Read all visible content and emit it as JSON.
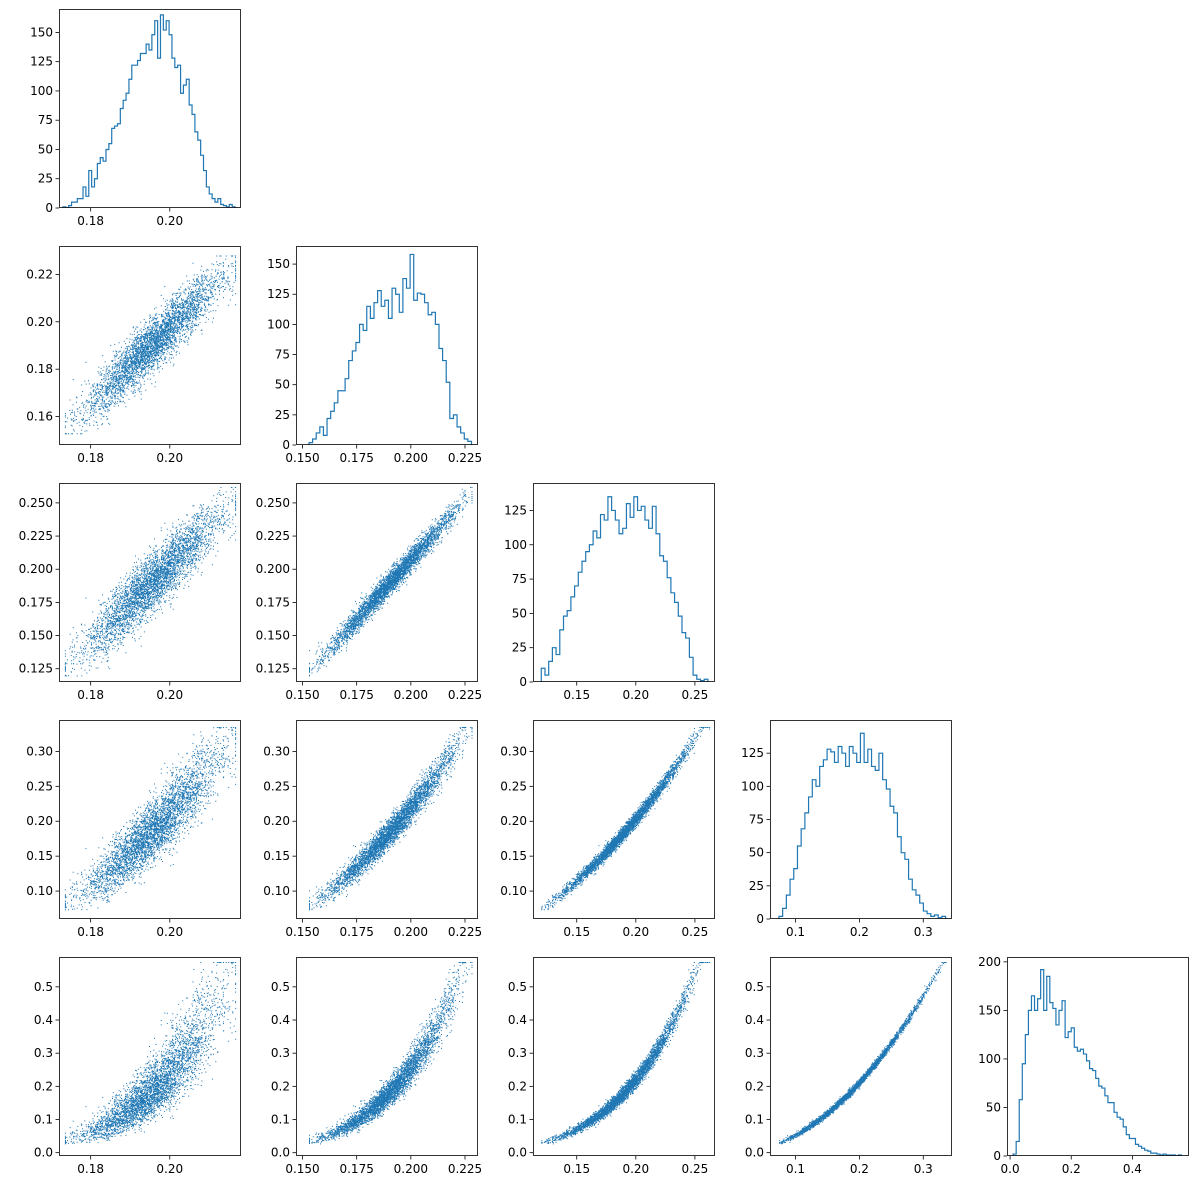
{
  "figure": {
    "type": "corner-plot",
    "series_color": "#1f77b4",
    "n_params": 5
  },
  "chart_data": [
    {
      "type": "histogram",
      "row": 0,
      "col": 0,
      "xlim": [
        0.172,
        0.218
      ],
      "ylim": [
        0,
        170
      ],
      "xticks": [
        0.18,
        0.2
      ],
      "xtick_labels": [
        "0.18",
        "0.20"
      ],
      "yticks": [
        0,
        25,
        50,
        75,
        100,
        125,
        150
      ],
      "ytick_labels": [
        "0",
        "25",
        "50",
        "75",
        "100",
        "125",
        "150"
      ],
      "bins": [
        0.173,
        0.2165
      ],
      "counts": [
        1,
        0,
        2,
        5,
        5,
        8,
        8,
        18,
        10,
        32,
        18,
        25,
        38,
        43,
        40,
        50,
        55,
        68,
        70,
        72,
        85,
        92,
        98,
        110,
        122,
        122,
        126,
        132,
        132,
        140,
        135,
        148,
        160,
        128,
        165,
        152,
        160,
        148,
        128,
        120,
        122,
        98,
        105,
        110,
        88,
        80,
        65,
        58,
        45,
        32,
        18,
        12,
        8,
        5,
        8,
        3,
        2,
        1,
        3,
        1
      ]
    },
    {
      "type": "scatter",
      "row": 1,
      "col": 0,
      "xlim": [
        0.172,
        0.218
      ],
      "ylim": [
        0.148,
        0.232
      ],
      "xticks": [
        0.18,
        0.2
      ],
      "xtick_labels": [
        "0.18",
        "0.20"
      ],
      "yticks": [
        0.16,
        0.18,
        0.2,
        0.22
      ],
      "ytick_labels": [
        "0.16",
        "0.18",
        "0.20",
        "0.22"
      ],
      "x_var": 0,
      "y_var": 1
    },
    {
      "type": "histogram",
      "row": 1,
      "col": 1,
      "xlim": [
        0.147,
        0.231
      ],
      "ylim": [
        0,
        165
      ],
      "xticks": [
        0.15,
        0.175,
        0.2,
        0.225
      ],
      "xtick_labels": [
        "0.150",
        "0.175",
        "0.200",
        "0.225"
      ],
      "yticks": [
        0,
        25,
        50,
        75,
        100,
        125,
        150
      ],
      "ytick_labels": [
        "0",
        "25",
        "50",
        "75",
        "100",
        "125",
        "150"
      ],
      "bins": [
        0.153,
        0.228
      ],
      "counts": [
        2,
        5,
        10,
        15,
        8,
        22,
        28,
        35,
        45,
        45,
        55,
        70,
        78,
        85,
        100,
        95,
        115,
        105,
        118,
        128,
        115,
        120,
        105,
        130,
        125,
        110,
        138,
        130,
        158,
        120,
        126,
        125,
        118,
        108,
        110,
        100,
        80,
        70,
        52,
        22,
        25,
        15,
        10,
        5,
        3
      ]
    },
    {
      "type": "scatter",
      "row": 2,
      "col": 0,
      "xlim": [
        0.172,
        0.218
      ],
      "ylim": [
        0.115,
        0.265
      ],
      "xticks": [
        0.18,
        0.2
      ],
      "xtick_labels": [
        "0.18",
        "0.20"
      ],
      "yticks": [
        0.125,
        0.15,
        0.175,
        0.2,
        0.225,
        0.25
      ],
      "ytick_labels": [
        "0.125",
        "0.150",
        "0.175",
        "0.200",
        "0.225",
        "0.250"
      ],
      "x_var": 0,
      "y_var": 2
    },
    {
      "type": "scatter",
      "row": 2,
      "col": 1,
      "xlim": [
        0.147,
        0.231
      ],
      "ylim": [
        0.115,
        0.265
      ],
      "xticks": [
        0.15,
        0.175,
        0.2,
        0.225
      ],
      "xtick_labels": [
        "0.150",
        "0.175",
        "0.200",
        "0.225"
      ],
      "yticks": [
        0.125,
        0.15,
        0.175,
        0.2,
        0.225,
        0.25
      ],
      "ytick_labels": [
        "0.125",
        "0.150",
        "0.175",
        "0.200",
        "0.225",
        "0.250"
      ],
      "x_var": 1,
      "y_var": 2
    },
    {
      "type": "histogram",
      "row": 2,
      "col": 2,
      "xlim": [
        0.113,
        0.267
      ],
      "ylim": [
        0,
        145
      ],
      "xticks": [
        0.15,
        0.2,
        0.25
      ],
      "xtick_labels": [
        "0.15",
        "0.20",
        "0.25"
      ],
      "yticks": [
        0,
        25,
        50,
        75,
        100,
        125
      ],
      "ytick_labels": [
        "0",
        "25",
        "50",
        "75",
        "100",
        "125"
      ],
      "bins": [
        0.12,
        0.261
      ],
      "counts": [
        10,
        5,
        15,
        25,
        20,
        38,
        48,
        52,
        62,
        70,
        80,
        88,
        95,
        100,
        110,
        105,
        122,
        118,
        135,
        125,
        118,
        108,
        112,
        130,
        120,
        135,
        125,
        128,
        118,
        112,
        128,
        108,
        92,
        88,
        76,
        65,
        58,
        48,
        36,
        32,
        18,
        5,
        2,
        1,
        2
      ]
    },
    {
      "type": "scatter",
      "row": 3,
      "col": 0,
      "xlim": [
        0.172,
        0.218
      ],
      "ylim": [
        0.06,
        0.345
      ],
      "xticks": [
        0.18,
        0.2
      ],
      "xtick_labels": [
        "0.18",
        "0.20"
      ],
      "yticks": [
        0.1,
        0.15,
        0.2,
        0.25,
        0.3
      ],
      "ytick_labels": [
        "0.10",
        "0.15",
        "0.20",
        "0.25",
        "0.30"
      ],
      "x_var": 0,
      "y_var": 3
    },
    {
      "type": "scatter",
      "row": 3,
      "col": 1,
      "xlim": [
        0.147,
        0.231
      ],
      "ylim": [
        0.06,
        0.345
      ],
      "xticks": [
        0.15,
        0.175,
        0.2,
        0.225
      ],
      "xtick_labels": [
        "0.150",
        "0.175",
        "0.200",
        "0.225"
      ],
      "yticks": [
        0.1,
        0.15,
        0.2,
        0.25,
        0.3
      ],
      "ytick_labels": [
        "0.10",
        "0.15",
        "0.20",
        "0.25",
        "0.30"
      ],
      "x_var": 1,
      "y_var": 3
    },
    {
      "type": "scatter",
      "row": 3,
      "col": 2,
      "xlim": [
        0.113,
        0.267
      ],
      "ylim": [
        0.06,
        0.345
      ],
      "xticks": [
        0.15,
        0.2,
        0.25
      ],
      "xtick_labels": [
        "0.15",
        "0.20",
        "0.25"
      ],
      "yticks": [
        0.1,
        0.15,
        0.2,
        0.25,
        0.3
      ],
      "ytick_labels": [
        "0.10",
        "0.15",
        "0.20",
        "0.25",
        "0.30"
      ],
      "x_var": 2,
      "y_var": 3
    },
    {
      "type": "histogram",
      "row": 3,
      "col": 3,
      "xlim": [
        0.06,
        0.345
      ],
      "ylim": [
        0,
        150
      ],
      "xticks": [
        0.1,
        0.2,
        0.3
      ],
      "xtick_labels": [
        "0.1",
        "0.2",
        "0.3"
      ],
      "yticks": [
        0,
        25,
        50,
        75,
        100,
        125
      ],
      "ytick_labels": [
        "0",
        "25",
        "50",
        "75",
        "100",
        "125"
      ],
      "bins": [
        0.074,
        0.335
      ],
      "counts": [
        2,
        8,
        18,
        30,
        38,
        55,
        68,
        80,
        92,
        105,
        100,
        115,
        120,
        128,
        126,
        118,
        130,
        125,
        115,
        130,
        125,
        118,
        140,
        118,
        128,
        115,
        112,
        125,
        105,
        98,
        85,
        80,
        62,
        50,
        45,
        30,
        22,
        18,
        12,
        6,
        4,
        2,
        3,
        1,
        2
      ]
    },
    {
      "type": "scatter",
      "row": 4,
      "col": 0,
      "xlim": [
        0.172,
        0.218
      ],
      "ylim": [
        -0.01,
        0.59
      ],
      "xticks": [
        0.18,
        0.2
      ],
      "xtick_labels": [
        "0.18",
        "0.20"
      ],
      "yticks": [
        0.0,
        0.1,
        0.2,
        0.3,
        0.4,
        0.5
      ],
      "ytick_labels": [
        "0.0",
        "0.1",
        "0.2",
        "0.3",
        "0.4",
        "0.5"
      ],
      "x_var": 0,
      "y_var": 4
    },
    {
      "type": "scatter",
      "row": 4,
      "col": 1,
      "xlim": [
        0.147,
        0.231
      ],
      "ylim": [
        -0.01,
        0.59
      ],
      "xticks": [
        0.15,
        0.175,
        0.2,
        0.225
      ],
      "xtick_labels": [
        "0.150",
        "0.175",
        "0.200",
        "0.225"
      ],
      "yticks": [
        0.0,
        0.1,
        0.2,
        0.3,
        0.4,
        0.5
      ],
      "ytick_labels": [
        "0.0",
        "0.1",
        "0.2",
        "0.3",
        "0.4",
        "0.5"
      ],
      "x_var": 1,
      "y_var": 4
    },
    {
      "type": "scatter",
      "row": 4,
      "col": 2,
      "xlim": [
        0.113,
        0.267
      ],
      "ylim": [
        -0.01,
        0.59
      ],
      "xticks": [
        0.15,
        0.2,
        0.25
      ],
      "xtick_labels": [
        "0.15",
        "0.20",
        "0.25"
      ],
      "yticks": [
        0.0,
        0.1,
        0.2,
        0.3,
        0.4,
        0.5
      ],
      "ytick_labels": [
        "0.0",
        "0.1",
        "0.2",
        "0.3",
        "0.4",
        "0.5"
      ],
      "x_var": 2,
      "y_var": 4
    },
    {
      "type": "scatter",
      "row": 4,
      "col": 3,
      "xlim": [
        0.06,
        0.345
      ],
      "ylim": [
        -0.01,
        0.59
      ],
      "xticks": [
        0.1,
        0.2,
        0.3
      ],
      "xtick_labels": [
        "0.1",
        "0.2",
        "0.3"
      ],
      "yticks": [
        0.0,
        0.1,
        0.2,
        0.3,
        0.4,
        0.5
      ],
      "ytick_labels": [
        "0.0",
        "0.1",
        "0.2",
        "0.3",
        "0.4",
        "0.5"
      ],
      "x_var": 3,
      "y_var": 4
    },
    {
      "type": "histogram",
      "row": 4,
      "col": 4,
      "xlim": [
        -0.01,
        0.585
      ],
      "ylim": [
        0,
        205
      ],
      "xticks": [
        0.0,
        0.2,
        0.4
      ],
      "xtick_labels": [
        "0.0",
        "0.2",
        "0.4"
      ],
      "yticks": [
        0,
        50,
        100,
        150,
        200
      ],
      "ytick_labels": [
        "0",
        "50",
        "100",
        "150",
        "200"
      ],
      "bins": [
        0.01,
        0.56
      ],
      "counts": [
        2,
        15,
        58,
        95,
        125,
        150,
        165,
        150,
        162,
        192,
        150,
        185,
        158,
        152,
        135,
        150,
        160,
        122,
        128,
        132,
        112,
        108,
        110,
        105,
        98,
        90,
        88,
        80,
        72,
        70,
        62,
        55,
        55,
        45,
        40,
        38,
        30,
        22,
        18,
        18,
        12,
        10,
        8,
        6,
        5,
        3,
        3,
        2,
        1,
        2,
        1,
        1,
        1,
        0,
        1
      ]
    }
  ]
}
